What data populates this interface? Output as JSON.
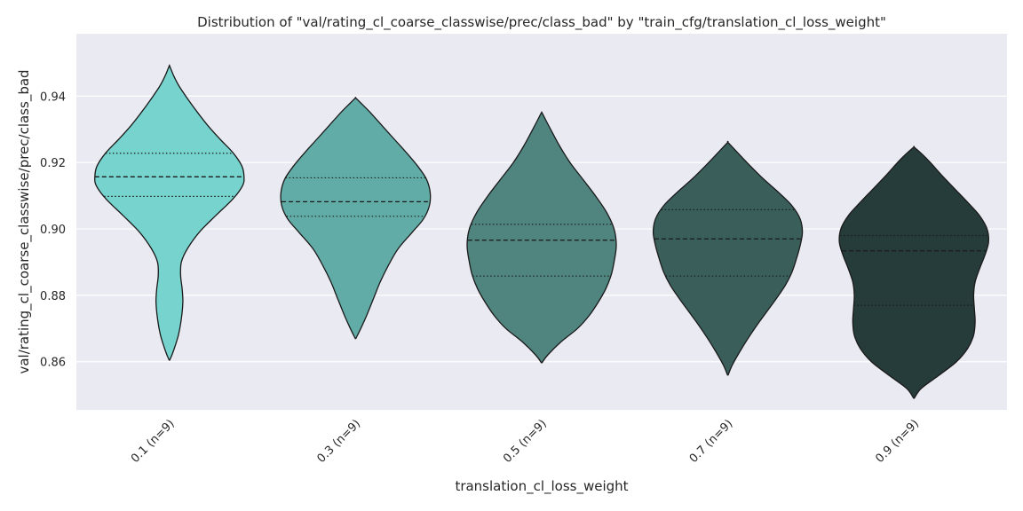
{
  "chart_data": {
    "type": "violin",
    "title": "Distribution of \"val/rating_cl_coarse_classwise/prec/class_bad\" by \"train_cfg/translation_cl_loss_weight\"",
    "xlabel": "translation_cl_loss_weight",
    "ylabel": "val/rating_cl_coarse_classwise/prec/class_bad",
    "ylim": [
      0.8455,
      0.9588
    ],
    "yticks": [
      "0.86",
      "0.88",
      "0.90",
      "0.92",
      "0.94"
    ],
    "ytick_values": [
      0.86,
      0.88,
      0.9,
      0.92,
      0.94
    ],
    "grid": true,
    "categories": [
      "0.1 (n=9)",
      "0.3 (n=9)",
      "0.5 (n=9)",
      "0.7 (n=9)",
      "0.9 (n=9)"
    ],
    "colors": [
      "#77d3cd",
      "#62aca7",
      "#4f847f",
      "#3a5f5b",
      "#263c3a"
    ],
    "violins": [
      {
        "category": "0.1 (n=9)",
        "min": 0.8605,
        "max": 0.949,
        "q1": 0.9098,
        "median": 0.9157,
        "q3": 0.9228,
        "profile": [
          [
            0.8605,
            0.004
          ],
          [
            0.863,
            0.05
          ],
          [
            0.868,
            0.12
          ],
          [
            0.873,
            0.16
          ],
          [
            0.878,
            0.18
          ],
          [
            0.882,
            0.17
          ],
          [
            0.886,
            0.15
          ],
          [
            0.89,
            0.16
          ],
          [
            0.894,
            0.24
          ],
          [
            0.899,
            0.4
          ],
          [
            0.904,
            0.62
          ],
          [
            0.909,
            0.85
          ],
          [
            0.913,
            0.98
          ],
          [
            0.9157,
            1.0
          ],
          [
            0.919,
            0.97
          ],
          [
            0.923,
            0.85
          ],
          [
            0.927,
            0.68
          ],
          [
            0.931,
            0.52
          ],
          [
            0.935,
            0.38
          ],
          [
            0.939,
            0.25
          ],
          [
            0.943,
            0.13
          ],
          [
            0.946,
            0.06
          ],
          [
            0.949,
            0.004
          ]
        ]
      },
      {
        "category": "0.3 (n=9)",
        "min": 0.867,
        "max": 0.9394,
        "q1": 0.9038,
        "median": 0.9082,
        "q3": 0.9154,
        "profile": [
          [
            0.867,
            0.004
          ],
          [
            0.87,
            0.07
          ],
          [
            0.874,
            0.15
          ],
          [
            0.879,
            0.24
          ],
          [
            0.884,
            0.33
          ],
          [
            0.889,
            0.44
          ],
          [
            0.894,
            0.57
          ],
          [
            0.899,
            0.76
          ],
          [
            0.903,
            0.91
          ],
          [
            0.907,
            0.99
          ],
          [
            0.911,
            1.0
          ],
          [
            0.915,
            0.95
          ],
          [
            0.919,
            0.83
          ],
          [
            0.923,
            0.68
          ],
          [
            0.927,
            0.52
          ],
          [
            0.931,
            0.36
          ],
          [
            0.935,
            0.2
          ],
          [
            0.9375,
            0.09
          ],
          [
            0.9394,
            0.004
          ]
        ]
      },
      {
        "category": "0.5 (n=9)",
        "min": 0.8597,
        "max": 0.935,
        "q1": 0.8858,
        "median": 0.8966,
        "q3": 0.9014,
        "profile": [
          [
            0.8597,
            0.004
          ],
          [
            0.862,
            0.08
          ],
          [
            0.866,
            0.26
          ],
          [
            0.87,
            0.48
          ],
          [
            0.874,
            0.64
          ],
          [
            0.878,
            0.76
          ],
          [
            0.882,
            0.86
          ],
          [
            0.886,
            0.93
          ],
          [
            0.89,
            0.97
          ],
          [
            0.895,
            1.0
          ],
          [
            0.9,
            0.97
          ],
          [
            0.905,
            0.87
          ],
          [
            0.91,
            0.72
          ],
          [
            0.915,
            0.55
          ],
          [
            0.92,
            0.38
          ],
          [
            0.925,
            0.24
          ],
          [
            0.93,
            0.12
          ],
          [
            0.933,
            0.05
          ],
          [
            0.935,
            0.004
          ]
        ]
      },
      {
        "category": "0.7 (n=9)",
        "min": 0.856,
        "max": 0.926,
        "q1": 0.8858,
        "median": 0.897,
        "q3": 0.9058,
        "profile": [
          [
            0.856,
            0.004
          ],
          [
            0.859,
            0.06
          ],
          [
            0.863,
            0.16
          ],
          [
            0.867,
            0.27
          ],
          [
            0.871,
            0.39
          ],
          [
            0.875,
            0.52
          ],
          [
            0.879,
            0.65
          ],
          [
            0.883,
            0.77
          ],
          [
            0.887,
            0.86
          ],
          [
            0.891,
            0.92
          ],
          [
            0.895,
            0.97
          ],
          [
            0.899,
            1.0
          ],
          [
            0.903,
            0.97
          ],
          [
            0.907,
            0.86
          ],
          [
            0.911,
            0.68
          ],
          [
            0.915,
            0.48
          ],
          [
            0.919,
            0.3
          ],
          [
            0.923,
            0.13
          ],
          [
            0.926,
            0.004
          ]
        ]
      },
      {
        "category": "0.9 (n=9)",
        "min": 0.849,
        "max": 0.9246,
        "q1": 0.877,
        "median": 0.8934,
        "q3": 0.898,
        "profile": [
          [
            0.849,
            0.004
          ],
          [
            0.852,
            0.1
          ],
          [
            0.856,
            0.34
          ],
          [
            0.86,
            0.57
          ],
          [
            0.864,
            0.72
          ],
          [
            0.868,
            0.8
          ],
          [
            0.872,
            0.82
          ],
          [
            0.876,
            0.81
          ],
          [
            0.88,
            0.8
          ],
          [
            0.884,
            0.82
          ],
          [
            0.888,
            0.88
          ],
          [
            0.892,
            0.95
          ],
          [
            0.896,
            1.0
          ],
          [
            0.9,
            0.98
          ],
          [
            0.904,
            0.88
          ],
          [
            0.908,
            0.72
          ],
          [
            0.912,
            0.55
          ],
          [
            0.916,
            0.38
          ],
          [
            0.92,
            0.22
          ],
          [
            0.9225,
            0.11
          ],
          [
            0.9246,
            0.004
          ]
        ]
      }
    ]
  }
}
